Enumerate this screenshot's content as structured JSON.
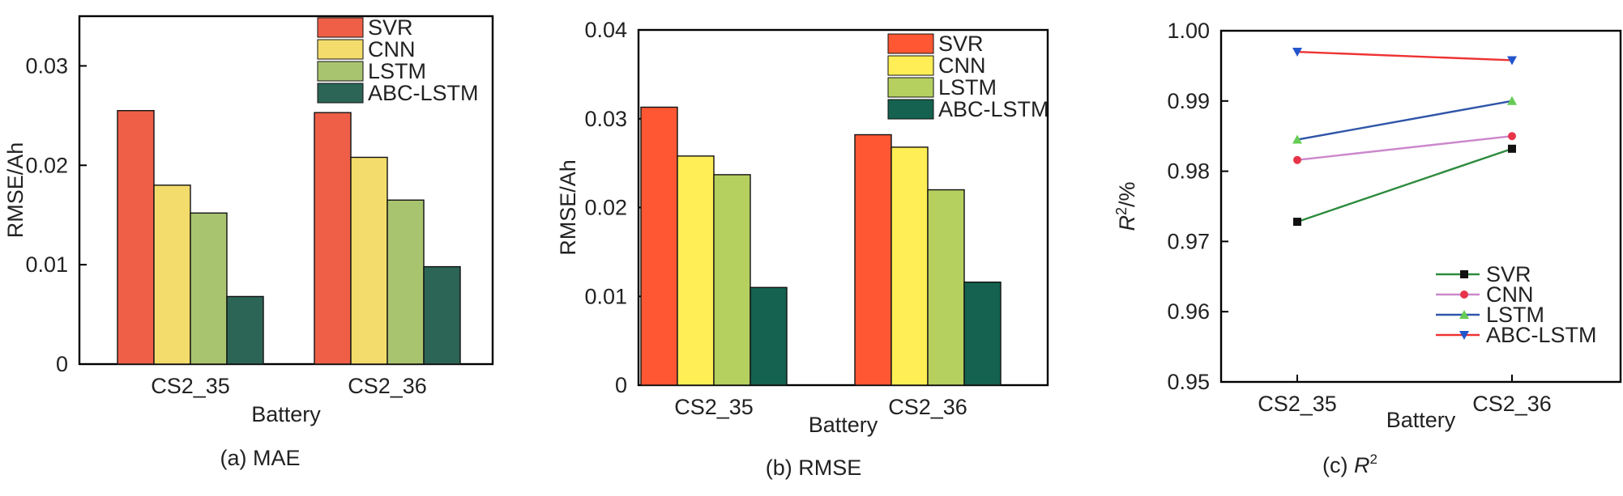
{
  "chart_data": [
    {
      "type": "bar",
      "title": "",
      "caption": "(a) MAE",
      "xlabel": "Battery",
      "ylabel": "RMSE/Ah",
      "ylim": [
        0,
        0.035
      ],
      "yticks": [
        0,
        0.01,
        0.02,
        0.03
      ],
      "yticklabels": [
        "0",
        "0.01",
        "0.02",
        "0.03"
      ],
      "categories": [
        "CS2_35",
        "CS2_36"
      ],
      "legend_position": "top-right",
      "series": [
        {
          "name": "SVR",
          "values": [
            0.0255,
            0.0253
          ],
          "color": "#ef5f48"
        },
        {
          "name": "CNN",
          "values": [
            0.018,
            0.0208
          ],
          "color": "#f3dc6b"
        },
        {
          "name": "LSTM",
          "values": [
            0.0152,
            0.0165
          ],
          "color": "#a9c46f"
        },
        {
          "name": "ABC-LSTM",
          "values": [
            0.0068,
            0.0098
          ],
          "color": "#2c6555"
        }
      ]
    },
    {
      "type": "bar",
      "title": "",
      "caption": "(b) RMSE",
      "xlabel": "Battery",
      "ylabel": "RMSE/Ah",
      "ylim": [
        0,
        0.04
      ],
      "yticks": [
        0,
        0.01,
        0.02,
        0.03,
        0.04
      ],
      "yticklabels": [
        "0",
        "0.01",
        "0.02",
        "0.03",
        "0.04"
      ],
      "categories": [
        "CS2_35",
        "CS2_36"
      ],
      "legend_position": "top-right",
      "series": [
        {
          "name": "SVR",
          "values": [
            0.0313,
            0.0282
          ],
          "color": "#ff5733"
        },
        {
          "name": "CNN",
          "values": [
            0.0258,
            0.0268
          ],
          "color": "#ffee55"
        },
        {
          "name": "LSTM",
          "values": [
            0.0237,
            0.022
          ],
          "color": "#b5d05f"
        },
        {
          "name": "ABC-LSTM",
          "values": [
            0.011,
            0.0116
          ],
          "color": "#14624f"
        }
      ]
    },
    {
      "type": "line",
      "title": "",
      "caption_prefix": "(c) ",
      "caption_var": "R",
      "caption_sup": "2",
      "xlabel": "Battery",
      "ylabel_var": "R",
      "ylabel_sup": "2",
      "ylabel_unit": "/%",
      "ylim": [
        0.95,
        1.0
      ],
      "yticks": [
        0.95,
        0.96,
        0.97,
        0.98,
        0.99,
        1.0
      ],
      "yticklabels": [
        "0.95",
        "0.96",
        "0.97",
        "0.98",
        "0.99",
        "1.00"
      ],
      "categories": [
        "CS2_35",
        "CS2_36"
      ],
      "legend_position": "bottom-right",
      "series": [
        {
          "name": "SVR",
          "values": [
            0.9728,
            0.9832
          ],
          "color": "#2e8b3e",
          "marker": "square",
          "marker_color": "#111111"
        },
        {
          "name": "CNN",
          "values": [
            0.9816,
            0.985
          ],
          "color": "#cc88cc",
          "marker": "circle",
          "marker_color": "#e8344a"
        },
        {
          "name": "LSTM",
          "values": [
            0.9845,
            0.99
          ],
          "color": "#2f55a8",
          "marker": "triangle-up",
          "marker_color": "#66cc55"
        },
        {
          "name": "ABC-LSTM",
          "values": [
            0.997,
            0.9958
          ],
          "color": "#ee3333",
          "marker": "triangle-down",
          "marker_color": "#2255cc"
        }
      ]
    }
  ]
}
